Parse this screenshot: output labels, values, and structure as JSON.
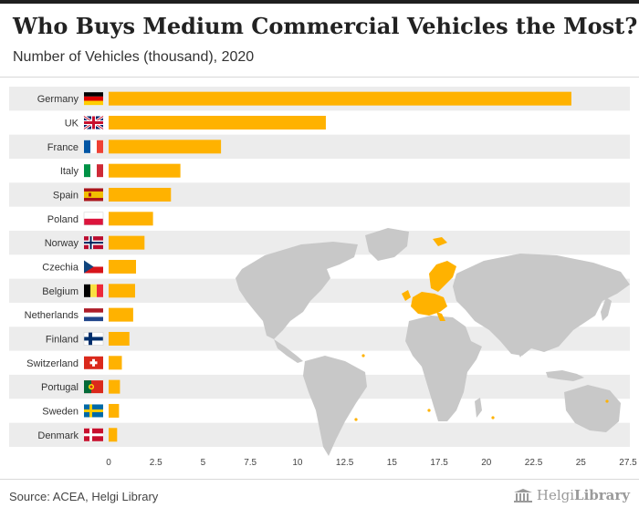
{
  "header": {
    "title": "Who Buys Medium Commercial Vehicles the Most?",
    "subtitle": "Number of Vehicles (thousand), 2020"
  },
  "footer": {
    "source": "Source: ACEA, Helgi Library",
    "logo_name": "Helgi",
    "logo_suffix": "Library"
  },
  "colors": {
    "bar": "#FFB200",
    "band": "#ececec",
    "map_land": "#c8c8c8",
    "map_highlight": "#FFB200"
  },
  "chart_data": {
    "type": "bar",
    "orientation": "horizontal",
    "categories": [
      "Germany",
      "UK",
      "France",
      "Italy",
      "Spain",
      "Poland",
      "Norway",
      "Czechia",
      "Belgium",
      "Netherlands",
      "Finland",
      "Switzerland",
      "Portugal",
      "Sweden",
      "Denmark"
    ],
    "values": [
      24.5,
      11.5,
      5.95,
      3.8,
      3.3,
      2.35,
      1.9,
      1.45,
      1.4,
      1.3,
      1.1,
      0.7,
      0.6,
      0.55,
      0.45
    ],
    "flag_icons": [
      "germany-flag-icon",
      "uk-flag-icon",
      "france-flag-icon",
      "italy-flag-icon",
      "spain-flag-icon",
      "poland-flag-icon",
      "norway-flag-icon",
      "czechia-flag-icon",
      "belgium-flag-icon",
      "netherlands-flag-icon",
      "finland-flag-icon",
      "switzerland-flag-icon",
      "portugal-flag-icon",
      "sweden-flag-icon",
      "denmark-flag-icon"
    ],
    "xticks": [
      "0",
      "2.5",
      "5",
      "7.5",
      "10",
      "12.5",
      "15",
      "17.5",
      "20",
      "22.5",
      "25",
      "27.5"
    ],
    "xlim": [
      0,
      27.5
    ],
    "grid": "alternating row bands",
    "background": "world map with European countries highlighted",
    "xlabel": "",
    "ylabel": ""
  }
}
